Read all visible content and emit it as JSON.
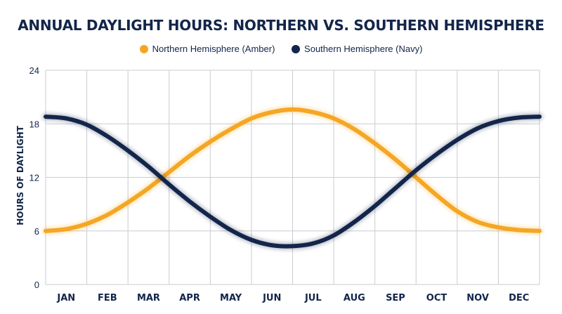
{
  "chart_data": {
    "type": "line",
    "title": "ANNUAL DAYLIGHT HOURS: NORTHERN VS. SOUTHERN HEMISPHERE",
    "ylabel": "HOURS OF DAYLIGHT",
    "xlabel": "",
    "ylim": [
      0,
      24
    ],
    "yticks": [
      0,
      6,
      12,
      18,
      24
    ],
    "categories": [
      "JAN",
      "FEB",
      "MAR",
      "APR",
      "MAY",
      "JUN",
      "JUL",
      "AUG",
      "SEP",
      "OCT",
      "NOV",
      "DEC"
    ],
    "grid": true,
    "legend_position": "top-center",
    "series": [
      {
        "name": "Northern Hemisphere (Amber)",
        "color": "#f5a623",
        "x": [
          0,
          0.5,
          1,
          1.5,
          2,
          2.5,
          3,
          3.5,
          4,
          4.5,
          5,
          5.5,
          6,
          6.5,
          7,
          7.5,
          8,
          8.5,
          9,
          9.5,
          10,
          10.5,
          11,
          11.5,
          12
        ],
        "values": [
          6,
          6.2,
          6.8,
          7.8,
          9.2,
          10.8,
          12.6,
          14.4,
          16,
          17.4,
          18.6,
          19.3,
          19.6,
          19.3,
          18.6,
          17.4,
          15.8,
          14,
          12,
          10,
          8.2,
          7,
          6.4,
          6.1,
          6
        ]
      },
      {
        "name": "Southern Hemisphere (Navy)",
        "color": "#13254a",
        "x": [
          0,
          0.5,
          1,
          1.5,
          2,
          2.5,
          3,
          3.5,
          4,
          4.5,
          5,
          5.5,
          6,
          6.5,
          7,
          7.5,
          8,
          8.5,
          9,
          9.5,
          10,
          10.5,
          11,
          11.5,
          12
        ],
        "values": [
          18.8,
          18.6,
          17.9,
          16.6,
          15,
          13.2,
          11.2,
          9.3,
          7.6,
          6.1,
          5,
          4.4,
          4.3,
          4.6,
          5.5,
          7,
          8.8,
          10.8,
          12.8,
          14.6,
          16.2,
          17.5,
          18.3,
          18.7,
          18.8
        ]
      }
    ]
  }
}
